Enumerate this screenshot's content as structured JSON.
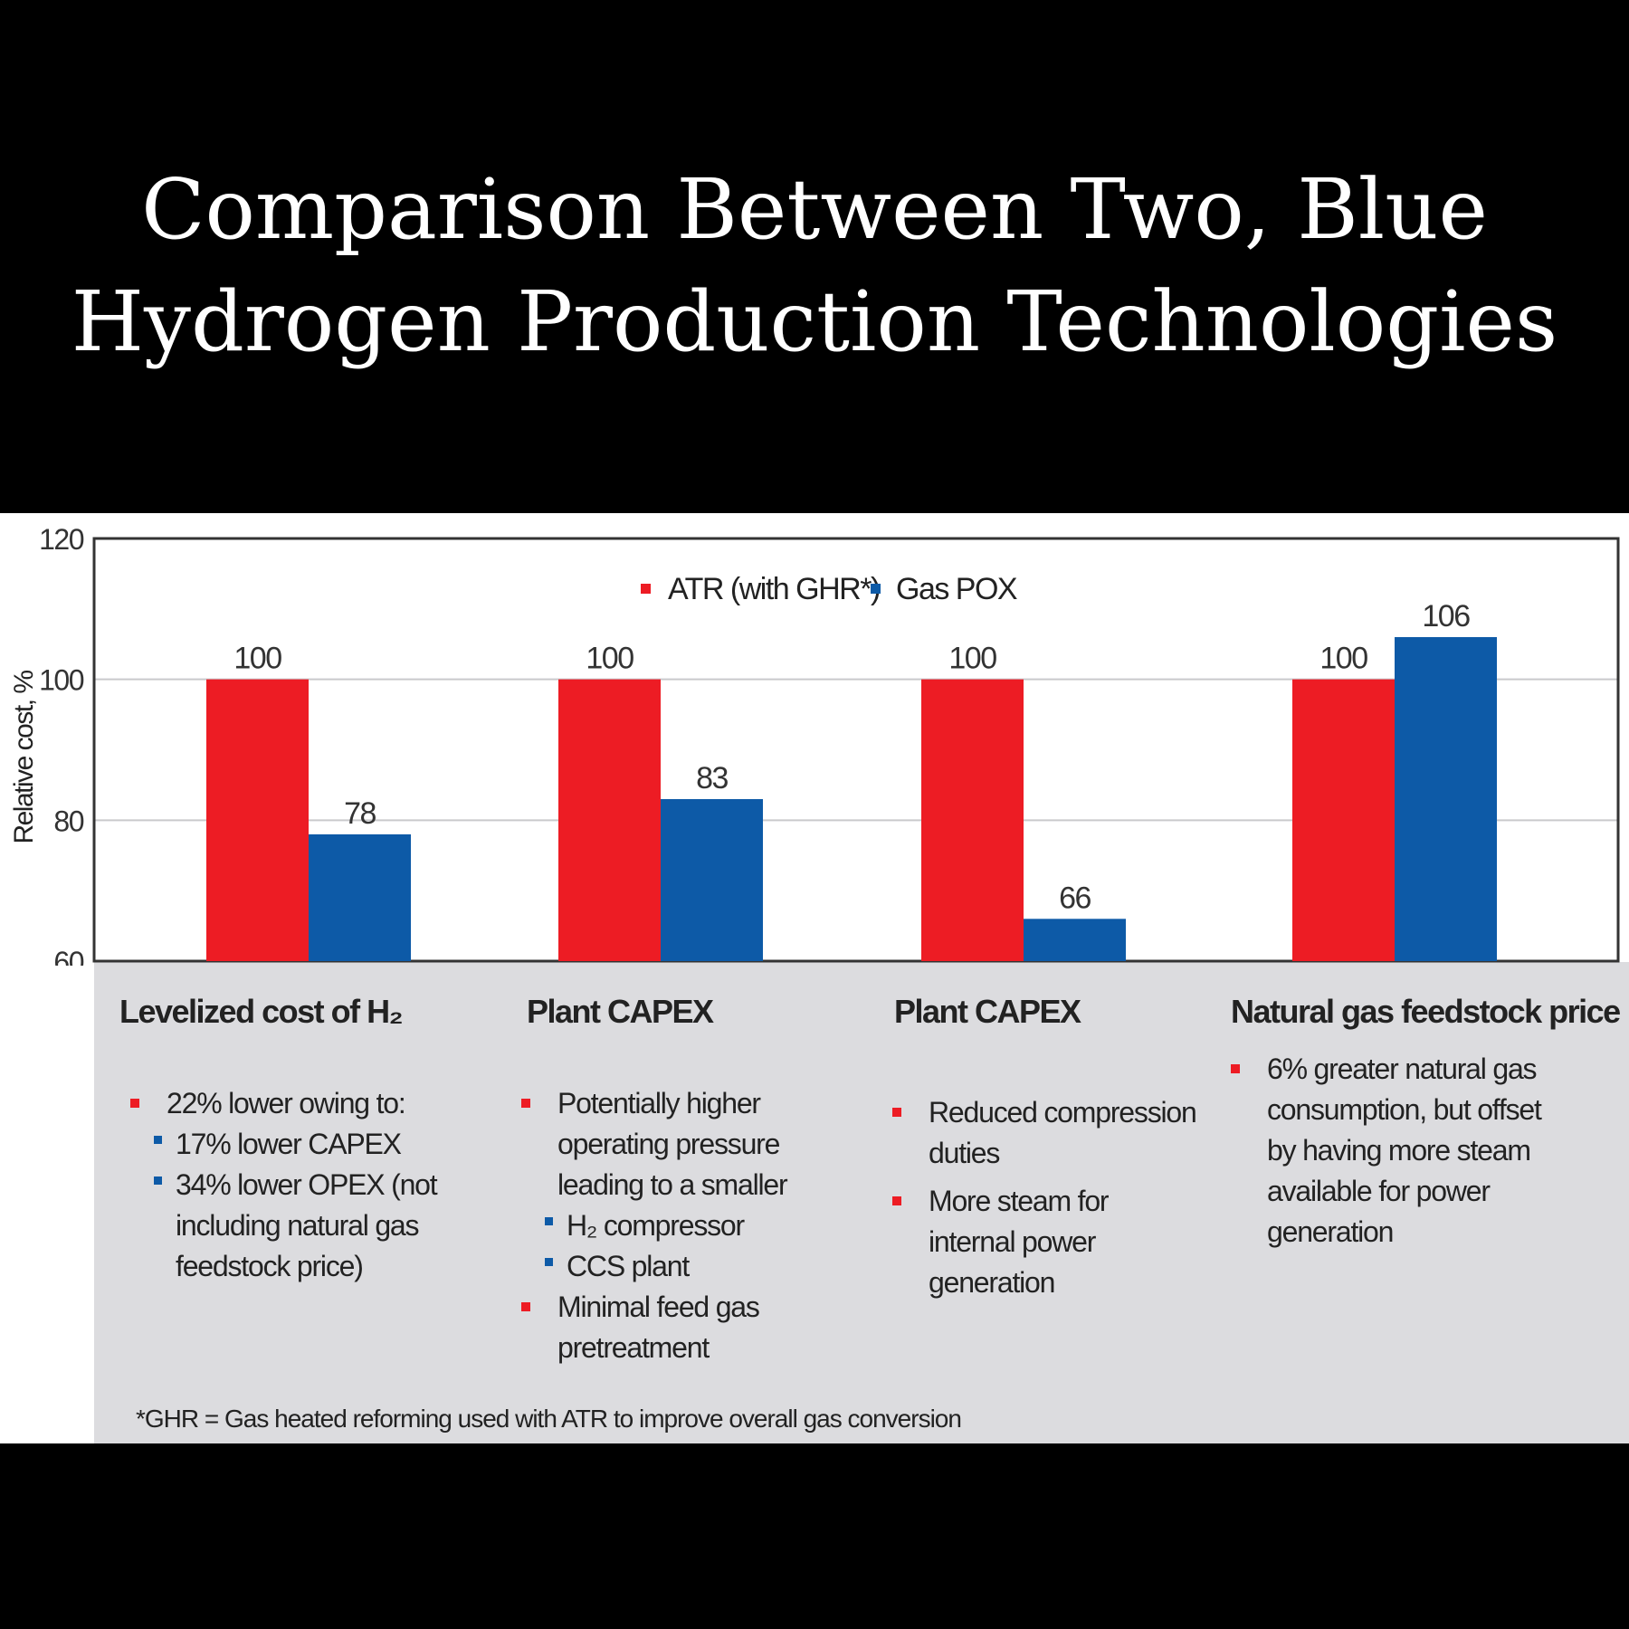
{
  "title": {
    "line1": "Comparison Between Two, Blue",
    "line2": "Hydrogen Production Technologies"
  },
  "chart_data": {
    "type": "bar",
    "ylabel": "Relative cost, %",
    "ylim": [
      60,
      120
    ],
    "yticks": [
      "60",
      "80",
      "100",
      "120"
    ],
    "grid": true,
    "legend_position": "top-center",
    "categories": [
      "Levelized cost of H₂",
      "Plant CAPEX",
      "Plant CAPEX",
      "Natural gas feedstock price"
    ],
    "series": [
      {
        "name": "ATR (with GHR*)",
        "color": "#ed1c24",
        "values": [
          100,
          100,
          100,
          100
        ]
      },
      {
        "name": "Gas POX",
        "color": "#0d5aa7",
        "values": [
          78,
          83,
          66,
          106
        ]
      }
    ]
  },
  "notes": [
    {
      "items": [
        {
          "text": "22% lower owing to:",
          "color": "red",
          "level": 0
        },
        {
          "text": "17% lower CAPEX",
          "color": "blue",
          "level": 1
        },
        {
          "text": "34% lower OPEX (not including natural gas feedstock price)",
          "color": "blue",
          "level": 1
        }
      ]
    },
    {
      "items": [
        {
          "text": "Potentially higher operating pressure leading to a smaller",
          "color": "red",
          "level": 0
        },
        {
          "text": "H₂ compressor",
          "color": "blue",
          "level": 1
        },
        {
          "text": "CCS plant",
          "color": "blue",
          "level": 1
        },
        {
          "text": "Minimal feed gas pretreatment",
          "color": "red",
          "level": 0
        }
      ]
    },
    {
      "items": [
        {
          "text": "Reduced compression duties",
          "color": "red",
          "level": 0
        },
        {
          "text": "More steam for internal power generation",
          "color": "red",
          "level": 0
        }
      ]
    },
    {
      "items": [
        {
          "text": "6% greater natural gas consumption, but offset by having more steam available for power generation",
          "color": "red",
          "level": 0
        }
      ]
    }
  ],
  "footnote": "*GHR = Gas heated reforming used with ATR to improve overall gas conversion"
}
